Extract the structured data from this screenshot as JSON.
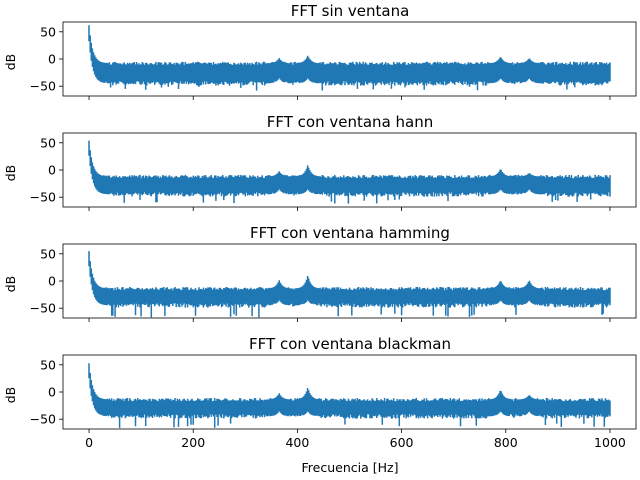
{
  "chart_data": [
    {
      "type": "line",
      "title": "FFT sin ventana",
      "xlabel": "",
      "ylabel": "dB",
      "xlim": [
        -50,
        1050
      ],
      "ylim": [
        -68,
        68
      ],
      "xticks": [
        0,
        200,
        400,
        600,
        800,
        1000
      ],
      "xtick_labels_shown": false,
      "yticks": [
        50,
        0,
        -50
      ],
      "series": [
        {
          "color": "#1f77b4",
          "peaks": [
            {
              "x": 0,
              "top": 62
            },
            {
              "x": 365,
              "top": 2
            },
            {
              "x": 420,
              "top": 7
            },
            {
              "x": 790,
              "top": 5
            },
            {
              "x": 845,
              "top": 2
            }
          ],
          "floor_band": [
            -45,
            -8
          ],
          "values_min": -58
        }
      ]
    },
    {
      "type": "line",
      "title": "FFT con ventana hann",
      "xlabel": "",
      "ylabel": "dB",
      "xlim": [
        -50,
        1050
      ],
      "ylim": [
        -68,
        68
      ],
      "xticks": [
        0,
        200,
        400,
        600,
        800,
        1000
      ],
      "xtick_labels_shown": false,
      "yticks": [
        50,
        0,
        -50
      ],
      "series": [
        {
          "color": "#1f77b4",
          "peaks": [
            {
              "x": 0,
              "top": 54
            },
            {
              "x": 365,
              "top": -2
            },
            {
              "x": 420,
              "top": 10
            },
            {
              "x": 790,
              "top": 3
            },
            {
              "x": 845,
              "top": -5
            }
          ],
          "floor_band": [
            -45,
            -12
          ],
          "values_min": -62
        }
      ]
    },
    {
      "type": "line",
      "title": "FFT con ventana hamming",
      "xlabel": "",
      "ylabel": "dB",
      "xlim": [
        -50,
        1050
      ],
      "ylim": [
        -68,
        68
      ],
      "xticks": [
        0,
        200,
        400,
        600,
        800,
        1000
      ],
      "xtick_labels_shown": false,
      "yticks": [
        50,
        0,
        -50
      ],
      "series": [
        {
          "color": "#1f77b4",
          "peaks": [
            {
              "x": 0,
              "top": 55
            },
            {
              "x": 365,
              "top": 2
            },
            {
              "x": 420,
              "top": 11
            },
            {
              "x": 790,
              "top": 2
            },
            {
              "x": 845,
              "top": 2
            }
          ],
          "floor_band": [
            -45,
            -14
          ],
          "values_min": -68
        }
      ]
    },
    {
      "type": "line",
      "title": "FFT con ventana blackman",
      "xlabel": "Frecuencia [Hz]",
      "ylabel": "dB",
      "xlim": [
        -50,
        1050
      ],
      "ylim": [
        -68,
        68
      ],
      "xticks": [
        0,
        200,
        400,
        600,
        800,
        1000
      ],
      "xtick_labels_shown": true,
      "yticks": [
        50,
        0,
        -50
      ],
      "series": [
        {
          "color": "#1f77b4",
          "peaks": [
            {
              "x": 0,
              "top": 53
            },
            {
              "x": 365,
              "top": -2
            },
            {
              "x": 420,
              "top": 9
            },
            {
              "x": 790,
              "top": 5
            },
            {
              "x": 845,
              "top": -5
            }
          ],
          "floor_band": [
            -45,
            -14
          ],
          "values_min": -66
        }
      ]
    }
  ]
}
